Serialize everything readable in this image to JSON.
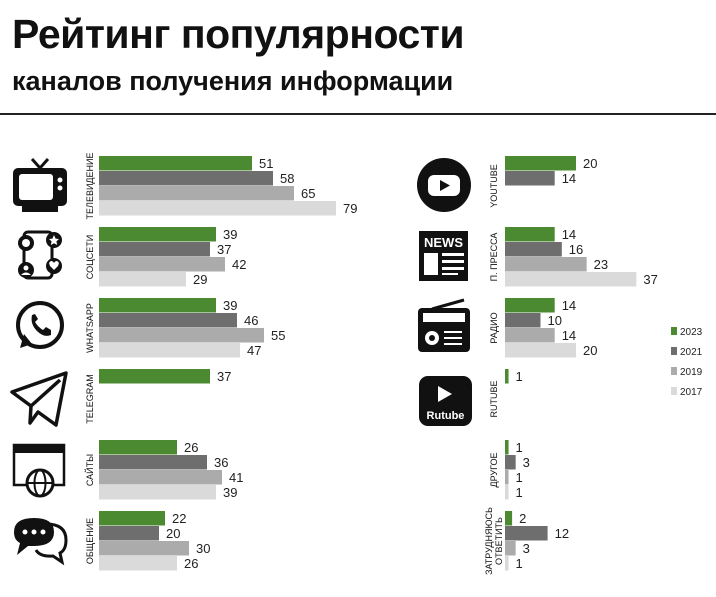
{
  "header": {
    "title": "Рейтинг популярности",
    "subtitle": "каналов получения информации"
  },
  "colors": {
    "2023": "#4b8a31",
    "2021": "#6e6e6e",
    "2019": "#ababab",
    "2017": "#dadada"
  },
  "icons": {
    "tv": "tv-icon",
    "socials": "social-network-icon",
    "whatsapp": "whatsapp-icon",
    "telegram": "telegram-icon",
    "sites": "website-globe-icon",
    "talk": "chat-bubbles-icon",
    "youtube": "youtube-icon",
    "press": "news-icon",
    "radio": "radio-icon",
    "rutube": "rutube-icon"
  },
  "chart_data": {
    "type": "bar",
    "orientation": "horizontal",
    "years": [
      "2023",
      "2021",
      "2019",
      "2017"
    ],
    "legend": {
      "position": "right",
      "labels": [
        "2023",
        "2021",
        "2019",
        "2017"
      ]
    },
    "categories": [
      {
        "id": "tv",
        "label": "ТЕЛЕВИДЕНИЕ",
        "values": [
          51,
          58,
          65,
          79
        ]
      },
      {
        "id": "socials",
        "label": "СОЦСЕТИ",
        "values": [
          39,
          37,
          42,
          29
        ]
      },
      {
        "id": "whatsapp",
        "label": "WHATSAPP",
        "values": [
          39,
          46,
          55,
          47
        ]
      },
      {
        "id": "telegram",
        "label": "TELEGRAM",
        "values": [
          37
        ]
      },
      {
        "id": "sites",
        "label": "САЙТЫ",
        "values": [
          26,
          36,
          41,
          39
        ]
      },
      {
        "id": "talk",
        "label": "ОБЩЕНИЕ",
        "values": [
          22,
          20,
          30,
          26
        ]
      },
      {
        "id": "youtube",
        "label": "YOUTUBE",
        "values": [
          20,
          14
        ]
      },
      {
        "id": "press",
        "label": "П. ПРЕССА",
        "values": [
          14,
          16,
          23,
          37
        ]
      },
      {
        "id": "radio",
        "label": "РАДИО",
        "values": [
          14,
          10,
          14,
          20
        ]
      },
      {
        "id": "rutube",
        "label": "RUTUBE",
        "values": [
          1
        ]
      },
      {
        "id": "other",
        "label": "ДРУГОЕ",
        "values": [
          1,
          3,
          1,
          1
        ]
      },
      {
        "id": "unsure",
        "label": "ЗАТРУДНЯЮСЬ ОТВЕТИТЬ",
        "label_lines": [
          "ЗАТРУДНЯЮСЬ",
          "ОТВЕТИТЬ"
        ],
        "values": [
          2,
          12,
          3,
          1
        ]
      }
    ],
    "icon_labels": {
      "rutube": "Rutube",
      "press": "NEWS"
    }
  }
}
